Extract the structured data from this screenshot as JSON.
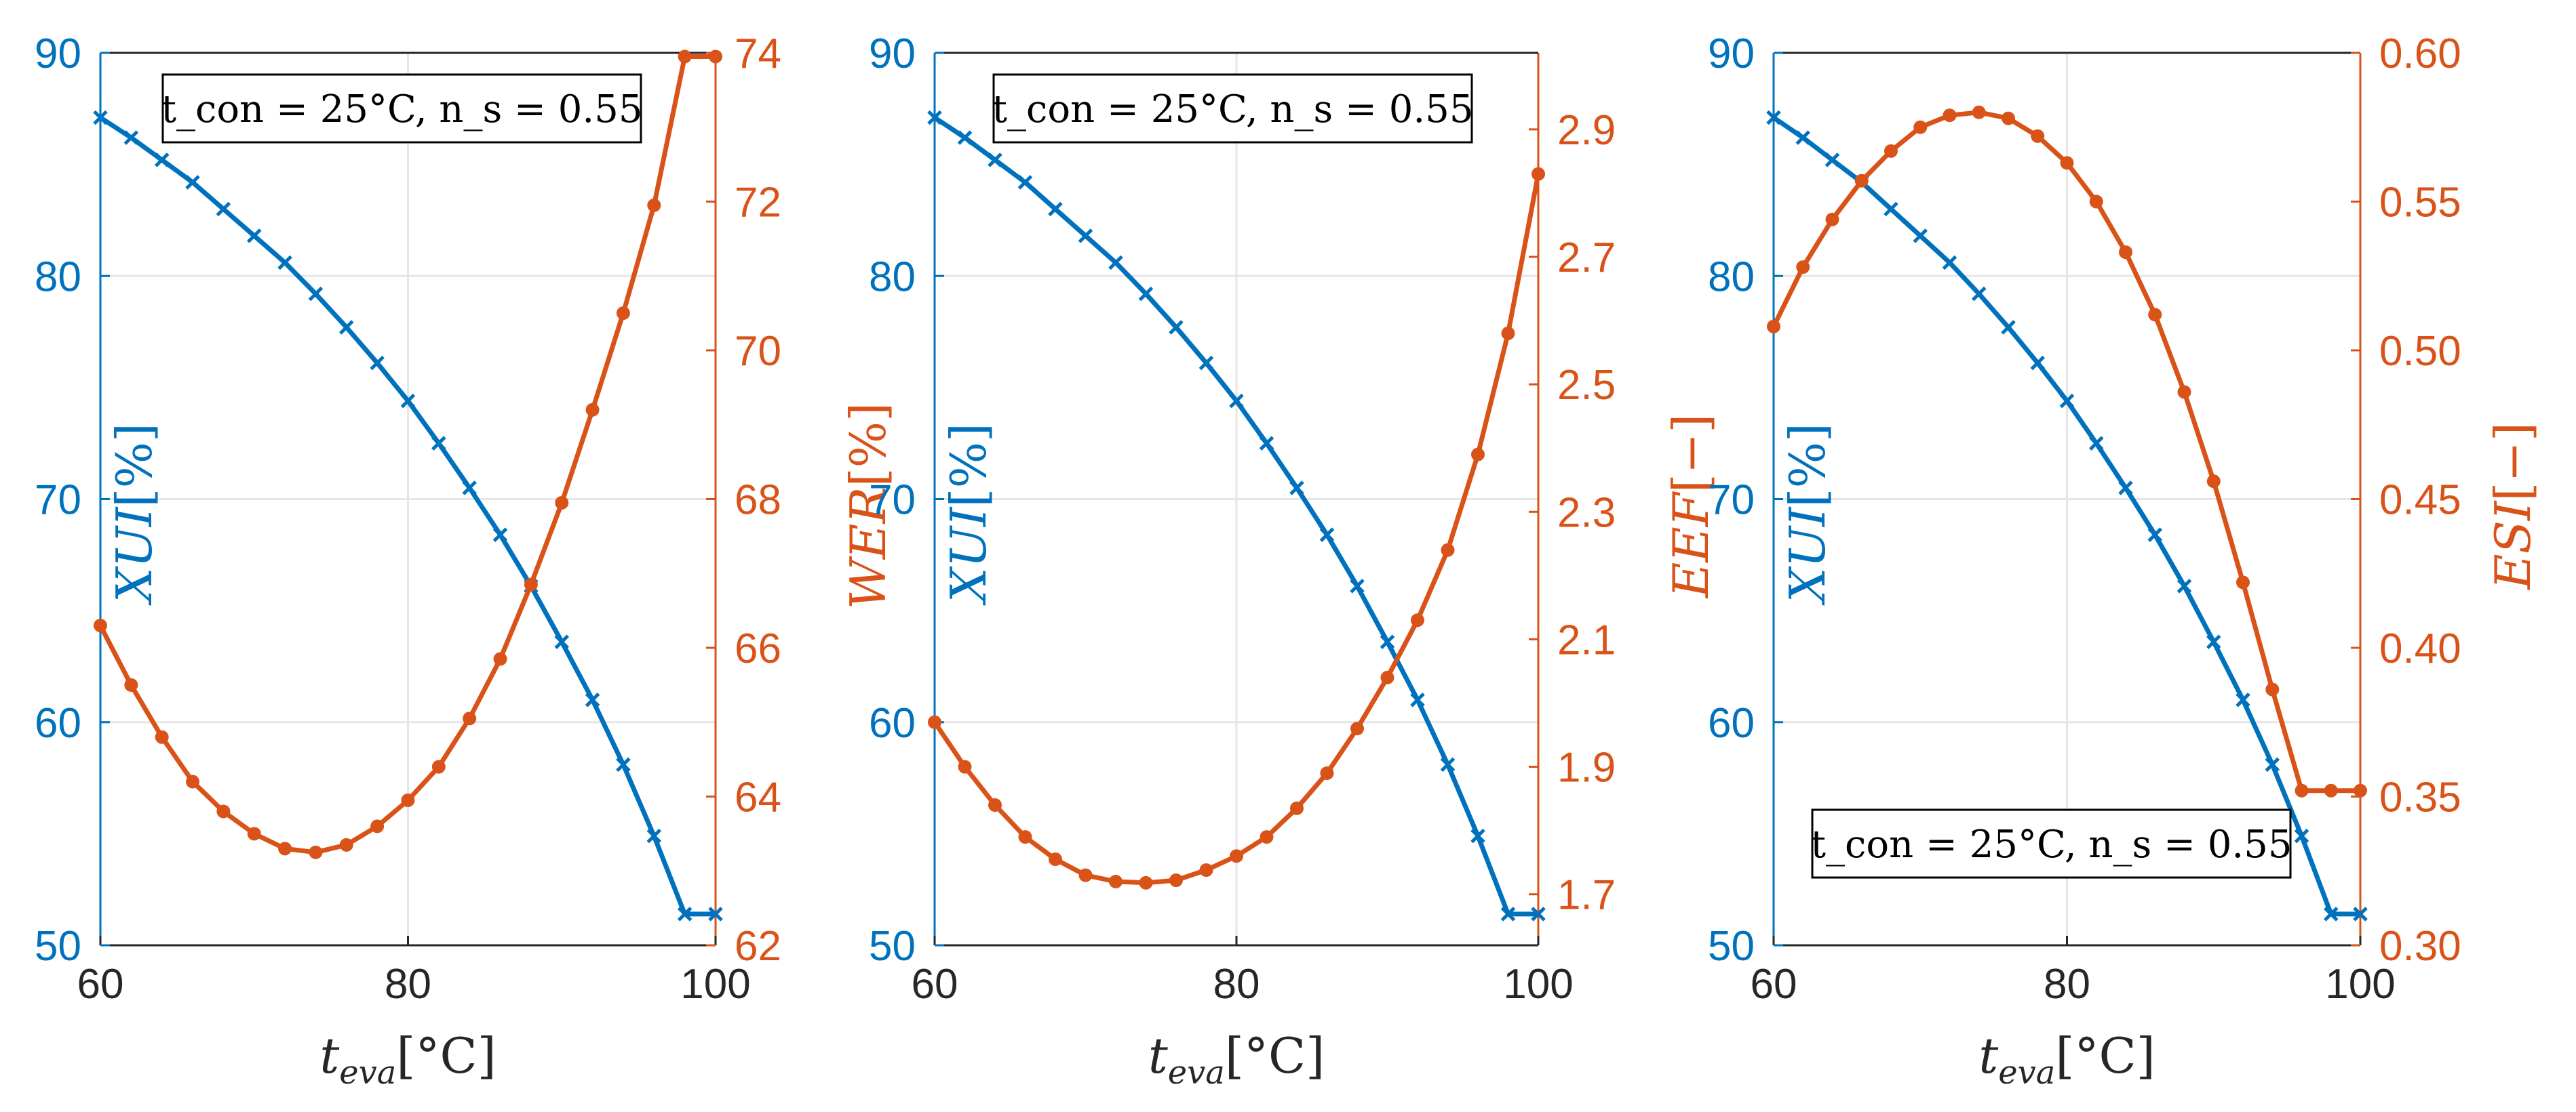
{
  "colors": {
    "left_series": "#0072BD",
    "right_series": "#D95319",
    "axis_dark": "#262626",
    "grid": "#e6e6e6"
  },
  "chart_data": [
    {
      "type": "line",
      "annotation": "t_con = 25°C, n_s = 0.55",
      "xlabel": {
        "base": "t",
        "sub": "eva",
        "unit": "[°C]"
      },
      "ylabel_left": {
        "text": "XUI",
        "unit": "[%]"
      },
      "ylabel_right": {
        "text": "WER",
        "unit": "[%]"
      },
      "xlim": [
        60,
        100
      ],
      "xticks": [
        "60",
        "80",
        "100"
      ],
      "ylim_left": [
        50,
        90
      ],
      "yticks_left": [
        "50",
        "60",
        "70",
        "80",
        "90"
      ],
      "ylim_right": [
        62,
        74
      ],
      "yticks_right": [
        "62",
        "64",
        "66",
        "68",
        "70",
        "72",
        "74"
      ],
      "x": [
        60,
        62,
        64,
        66,
        68,
        70,
        72,
        74,
        76,
        78,
        80,
        82,
        84,
        86,
        88,
        90,
        92,
        94,
        96,
        98,
        100
      ],
      "series": [
        {
          "name": "XUI",
          "axis": "left",
          "marker": "x",
          "values": [
            87.1,
            86.2,
            85.2,
            84.2,
            83.0,
            81.8,
            80.6,
            79.2,
            77.7,
            76.1,
            74.4,
            72.5,
            70.5,
            68.4,
            66.1,
            63.6,
            61.0,
            58.1,
            54.9,
            51.4,
            51.4
          ]
        },
        {
          "name": "WER",
          "axis": "right",
          "marker": "o",
          "values": [
            66.3,
            65.5,
            64.8,
            64.2,
            63.8,
            63.5,
            63.3,
            63.25,
            63.35,
            63.6,
            63.95,
            64.4,
            65.05,
            65.85,
            66.85,
            67.95,
            69.2,
            70.5,
            71.95,
            73.95,
            73.95
          ]
        }
      ]
    },
    {
      "type": "line",
      "annotation": "t_con = 25°C, n_s = 0.55",
      "xlabel": {
        "base": "t",
        "sub": "eva",
        "unit": "[°C]"
      },
      "ylabel_left": {
        "text": "XUI",
        "unit": "[%]"
      },
      "ylabel_right": {
        "text": "EEF",
        "unit": "[−]"
      },
      "xlim": [
        60,
        100
      ],
      "xticks": [
        "60",
        "80",
        "100"
      ],
      "ylim_left": [
        50,
        90
      ],
      "yticks_left": [
        "50",
        "60",
        "70",
        "80",
        "90"
      ],
      "ylim_right": [
        1.62,
        3.02
      ],
      "yticks_right": [
        "1.7",
        "1.9",
        "2.1",
        "2.3",
        "2.5",
        "2.7",
        "2.9"
      ],
      "x": [
        60,
        62,
        64,
        66,
        68,
        70,
        72,
        74,
        76,
        78,
        80,
        82,
        84,
        86,
        88,
        90,
        92,
        94,
        96,
        98,
        100
      ],
      "series": [
        {
          "name": "XUI",
          "axis": "left",
          "marker": "x",
          "values": [
            87.1,
            86.2,
            85.2,
            84.2,
            83.0,
            81.8,
            80.6,
            79.2,
            77.7,
            76.1,
            74.4,
            72.5,
            70.5,
            68.4,
            66.1,
            63.6,
            61.0,
            58.1,
            54.9,
            51.4,
            51.4
          ]
        },
        {
          "name": "EEF",
          "axis": "right",
          "marker": "o",
          "values": [
            1.97,
            1.9,
            1.84,
            1.79,
            1.755,
            1.73,
            1.72,
            1.718,
            1.722,
            1.738,
            1.76,
            1.79,
            1.835,
            1.89,
            1.96,
            2.04,
            2.13,
            2.24,
            2.39,
            2.58,
            2.83
          ]
        }
      ]
    },
    {
      "type": "line",
      "annotation": "t_con = 25°C, n_s = 0.55",
      "xlabel": {
        "base": "t",
        "sub": "eva",
        "unit": "[°C]"
      },
      "ylabel_left": {
        "text": "XUI",
        "unit": "[%]"
      },
      "ylabel_right": {
        "text": "ESI",
        "unit": "[−]"
      },
      "xlim": [
        60,
        100
      ],
      "xticks": [
        "60",
        "80",
        "100"
      ],
      "ylim_left": [
        50,
        90
      ],
      "yticks_left": [
        "50",
        "60",
        "70",
        "80",
        "90"
      ],
      "ylim_right": [
        0.3,
        0.6
      ],
      "yticks_right": [
        "0.30",
        "0.35",
        "0.40",
        "0.45",
        "0.50",
        "0.55",
        "0.60"
      ],
      "x": [
        60,
        62,
        64,
        66,
        68,
        70,
        72,
        74,
        76,
        78,
        80,
        82,
        84,
        86,
        88,
        90,
        92,
        94,
        96,
        98,
        100
      ],
      "series": [
        {
          "name": "XUI",
          "axis": "left",
          "marker": "x",
          "values": [
            87.1,
            86.2,
            85.2,
            84.2,
            83.0,
            81.8,
            80.6,
            79.2,
            77.7,
            76.1,
            74.4,
            72.5,
            70.5,
            68.4,
            66.1,
            63.6,
            61.0,
            58.1,
            54.9,
            51.4,
            51.4
          ]
        },
        {
          "name": "ESI",
          "axis": "right",
          "marker": "o",
          "values": [
            0.508,
            0.528,
            0.544,
            0.557,
            0.567,
            0.575,
            0.579,
            0.58,
            0.578,
            0.572,
            0.563,
            0.55,
            0.533,
            0.512,
            0.486,
            0.456,
            0.422,
            0.386,
            0.352,
            0.352,
            0.352
          ]
        }
      ]
    }
  ]
}
